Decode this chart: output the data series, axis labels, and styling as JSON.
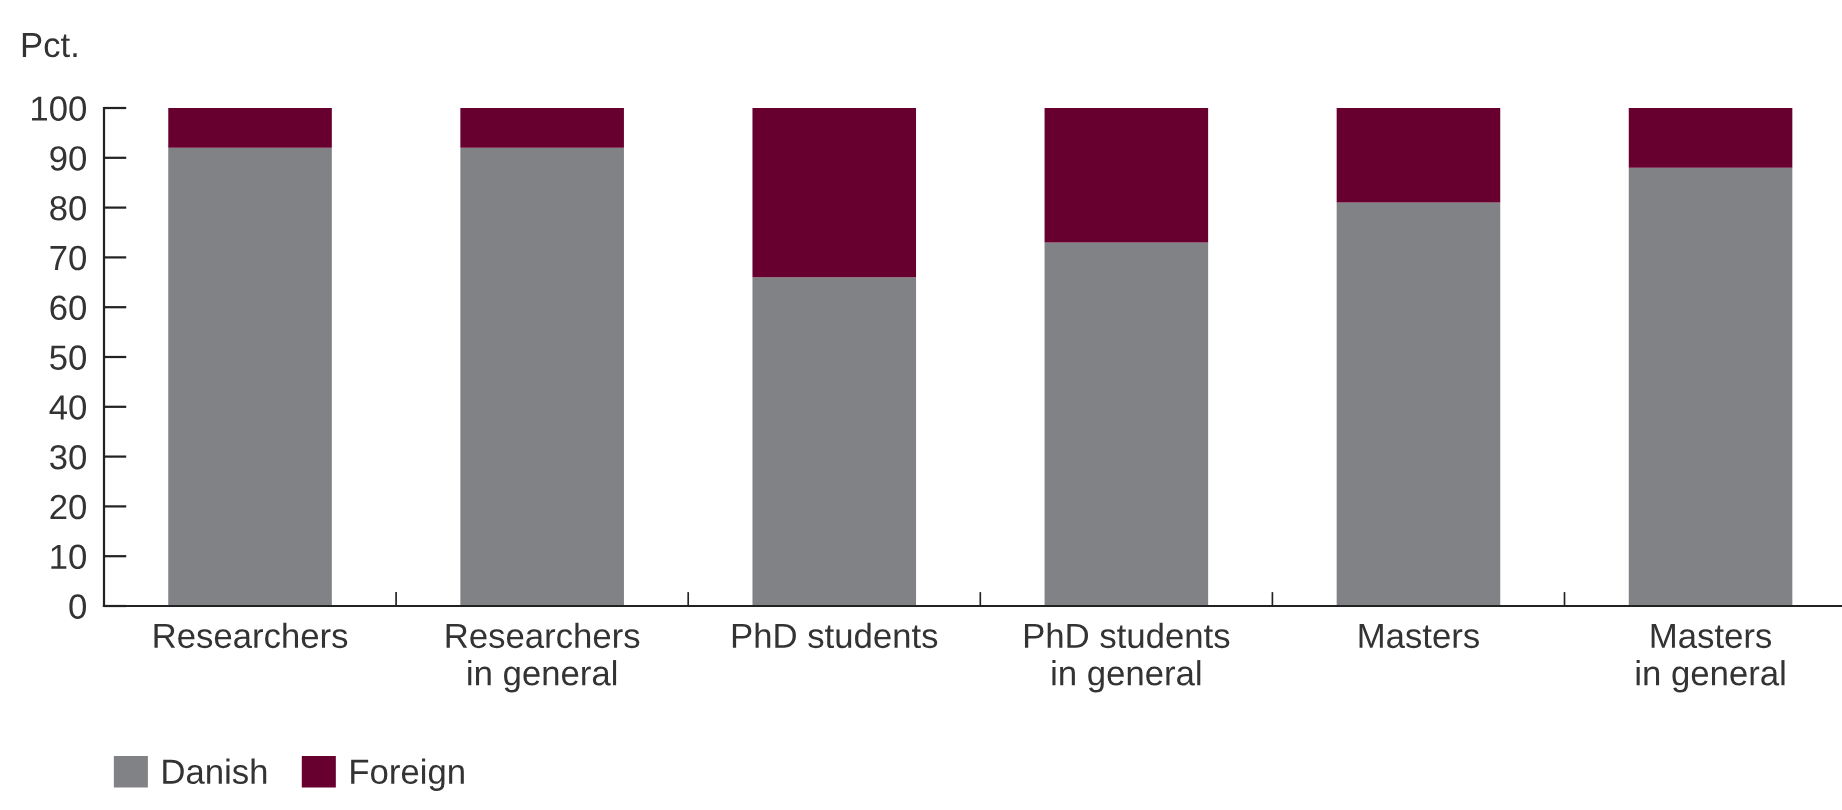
{
  "chart_data": {
    "type": "bar",
    "stacked": true,
    "ylabel": "Pct.",
    "categories": [
      "Researchers",
      "Researchers\nin general",
      "PhD students",
      "PhD students\nin general",
      "Masters",
      "Masters\nin general"
    ],
    "series": [
      {
        "name": "Danish",
        "color": "#818285",
        "values": [
          92,
          92,
          66,
          73,
          81,
          88
        ]
      },
      {
        "name": "Foreign",
        "color": "#67002f",
        "values": [
          8,
          8,
          34,
          27,
          19,
          12
        ]
      }
    ],
    "ylim": [
      0,
      100
    ],
    "yticks": [
      0,
      10,
      20,
      30,
      40,
      50,
      60,
      70,
      80,
      90,
      100
    ],
    "grid": false,
    "legend": "bottom left"
  }
}
